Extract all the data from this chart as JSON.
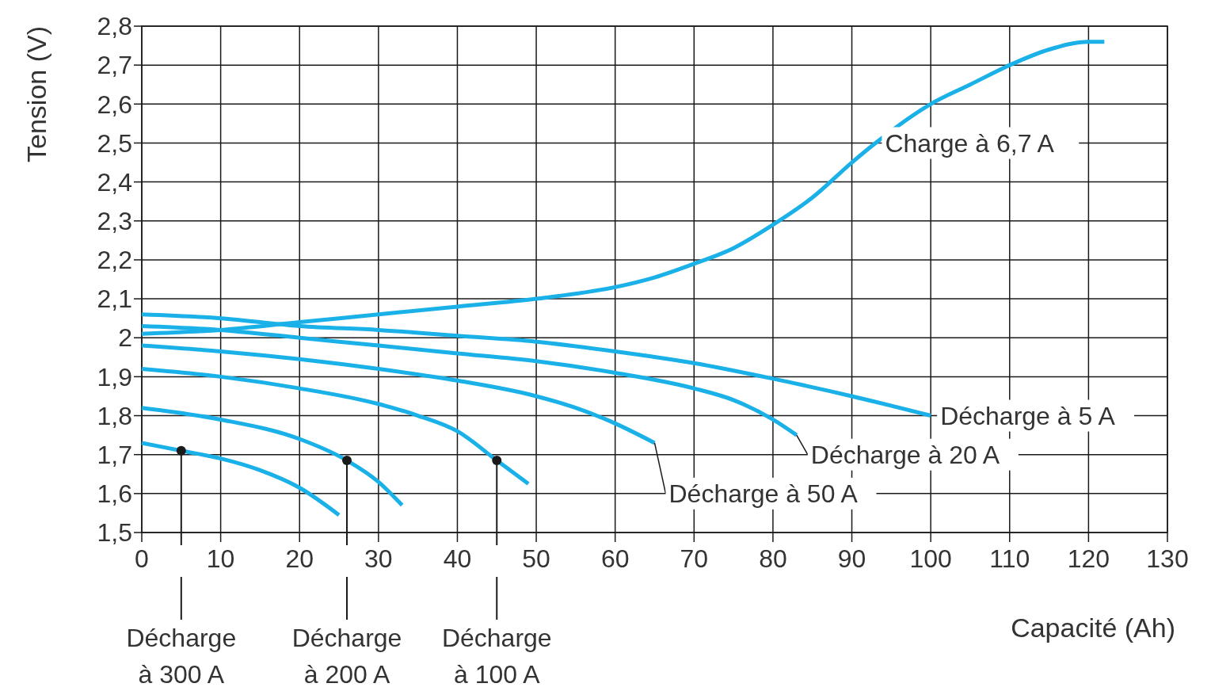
{
  "chart_data": {
    "type": "line",
    "xlabel": "Capacité (Ah)",
    "ylabel": "Tension (V)",
    "xlim": [
      0,
      130
    ],
    "xticks": [
      0,
      10,
      20,
      30,
      40,
      50,
      60,
      70,
      80,
      90,
      100,
      110,
      120,
      130
    ],
    "ylim": [
      1.5,
      2.8
    ],
    "yticks": [
      {
        "value": 1.5,
        "label": "1,5"
      },
      {
        "value": 1.6,
        "label": "1,6"
      },
      {
        "value": 1.7,
        "label": "1,7"
      },
      {
        "value": 1.8,
        "label": "1,8"
      },
      {
        "value": 1.9,
        "label": "1,9"
      },
      2,
      {
        "value": 2.1,
        "label": "2,1"
      },
      {
        "value": 2.2,
        "label": "2,2"
      },
      {
        "value": 2.3,
        "label": "2,3"
      },
      {
        "value": 2.4,
        "label": "2,4"
      },
      {
        "value": 2.5,
        "label": "2,5"
      },
      {
        "value": 2.6,
        "label": "2,6"
      },
      {
        "value": 2.7,
        "label": "2,7"
      },
      {
        "value": 2.8,
        "label": "2,8"
      }
    ],
    "grid": true,
    "marker": "none",
    "line_style": "solid",
    "series": [
      {
        "color": "#1ab0e8",
        "x": [
          0,
          10,
          20,
          30,
          40,
          50,
          60,
          65,
          70,
          75,
          80,
          85,
          90,
          93,
          100,
          105,
          110,
          115,
          120,
          122
        ],
        "values": [
          2.01,
          2.02,
          2.04,
          2.06,
          2.08,
          2.1,
          2.13,
          2.155,
          2.19,
          2.23,
          2.29,
          2.36,
          2.45,
          2.5,
          2.6,
          2.65,
          2.7,
          2.74,
          2.76,
          2.76
        ]
      },
      {
        "color": "#1ab0e8",
        "x": [
          0,
          10,
          20,
          30,
          40,
          50,
          60,
          70,
          80,
          90,
          100
        ],
        "values": [
          2.06,
          2.05,
          2.03,
          2.02,
          2.005,
          1.99,
          1.965,
          1.935,
          1.895,
          1.85,
          1.8
        ]
      },
      {
        "color": "#1ab0e8",
        "x": [
          0,
          10,
          20,
          30,
          40,
          50,
          60,
          70,
          75,
          80,
          83
        ],
        "values": [
          2.03,
          2.02,
          2.0,
          1.98,
          1.96,
          1.94,
          1.91,
          1.87,
          1.84,
          1.79,
          1.75
        ]
      },
      {
        "color": "#1ab0e8",
        "x": [
          0,
          10,
          20,
          30,
          40,
          50,
          55,
          60,
          65
        ],
        "values": [
          1.98,
          1.965,
          1.945,
          1.92,
          1.89,
          1.85,
          1.82,
          1.78,
          1.73
        ]
      },
      {
        "color": "#1ab0e8",
        "x": [
          0,
          10,
          20,
          30,
          35,
          40,
          45,
          49
        ],
        "values": [
          1.92,
          1.9,
          1.87,
          1.83,
          1.8,
          1.76,
          1.685,
          1.625
        ]
      },
      {
        "color": "#1ab0e8",
        "x": [
          0,
          10,
          20,
          26,
          30,
          33
        ],
        "values": [
          1.82,
          1.79,
          1.74,
          1.685,
          1.63,
          1.57
        ]
      },
      {
        "color": "#1ab0e8",
        "x": [
          0,
          5,
          10,
          15,
          20,
          25
        ],
        "values": [
          1.73,
          1.71,
          1.69,
          1.66,
          1.615,
          1.545
        ]
      }
    ],
    "annotations": [
      {
        "text": "Charge à 6,7 A",
        "x": 93,
        "y": 2.5
      },
      {
        "text": "Décharge à 5 A",
        "x": 100,
        "y": 1.8
      },
      {
        "text": "Décharge à 20 A",
        "x": 83,
        "y": 1.75
      },
      {
        "text": "Décharge à 50 A",
        "x": 65,
        "y": 1.73
      },
      {
        "text": "Décharge à 300 A",
        "x": 5,
        "y": 1.71
      },
      {
        "text": "Décharge à 200 A",
        "x": 26,
        "y": 1.685
      },
      {
        "text": "Décharge à 100 A",
        "x": 45,
        "y": 1.685
      }
    ]
  }
}
